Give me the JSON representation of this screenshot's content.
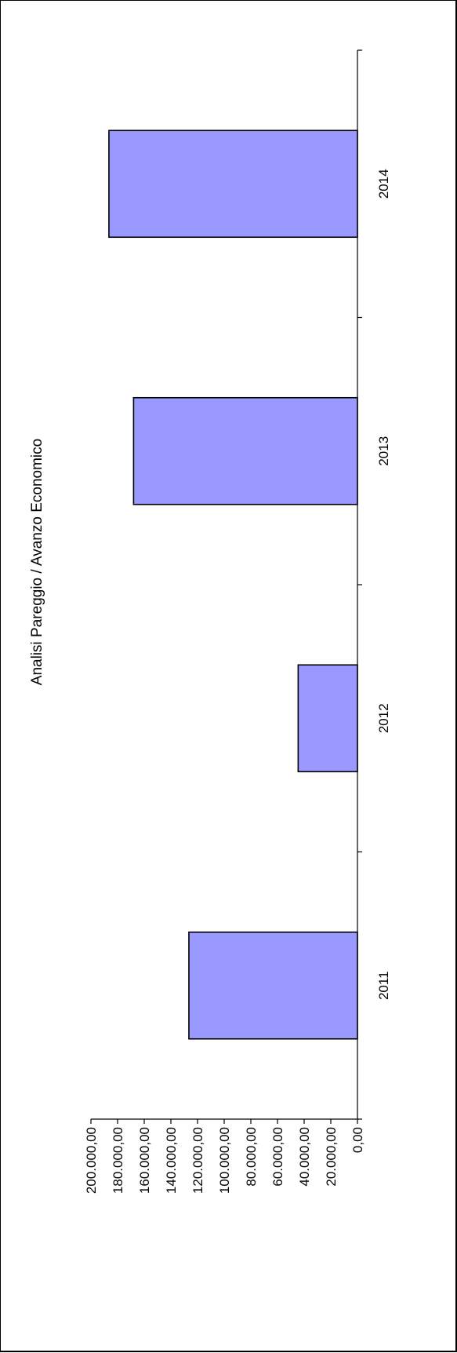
{
  "chart_data": {
    "type": "bar",
    "orientation": "horizontal-rotated",
    "title": "Analisi Pareggio / Avanzo Economico",
    "categories": [
      "2011",
      "2012",
      "2013",
      "2014"
    ],
    "values": [
      126500,
      44500,
      168000,
      186500
    ],
    "ylim": [
      0,
      200000
    ],
    "ticks": [
      "0,00",
      "20.000,00",
      "40.000,00",
      "60.000,00",
      "80.000,00",
      "100.000,00",
      "120.000,00",
      "140.000,00",
      "160.000,00",
      "180.000,00",
      "200.000,00"
    ],
    "bar_color": "#9999ff",
    "grid": false,
    "legend": "none"
  }
}
